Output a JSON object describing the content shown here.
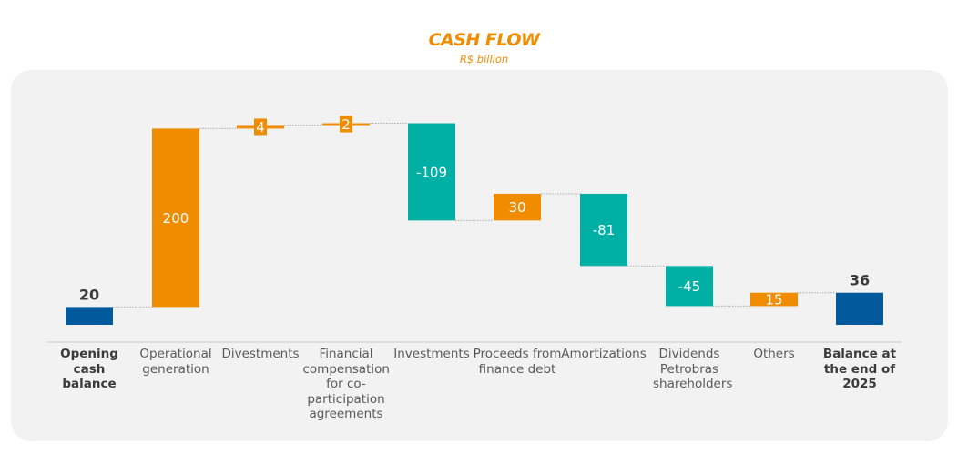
{
  "chart_data": {
    "type": "waterfall",
    "title": "CASH FLOW",
    "subtitle": "R$ billion",
    "ylim": [
      0,
      220
    ],
    "categories": [
      {
        "label": "Opening cash balance",
        "value": 20,
        "kind": "total",
        "display": "20"
      },
      {
        "label": "Operational generation",
        "value": 200,
        "kind": "increase",
        "display": "200"
      },
      {
        "label": "Divestments",
        "value": 4,
        "kind": "increase",
        "display": "4"
      },
      {
        "label": "Financial compensation for co-participation agreements",
        "value": 2,
        "kind": "increase",
        "display": "2"
      },
      {
        "label": "Investments",
        "value": -109,
        "kind": "decrease",
        "display": "-109"
      },
      {
        "label": "Proceeds from finance debt",
        "value": 30,
        "kind": "increase",
        "display": "30"
      },
      {
        "label": "Amortizations",
        "value": -81,
        "kind": "decrease",
        "display": "-81"
      },
      {
        "label": "Dividends Petrobras shareholders",
        "value": -45,
        "kind": "decrease",
        "display": "-45"
      },
      {
        "label": "Others",
        "value": 15,
        "kind": "increase",
        "display": "15"
      },
      {
        "label": "Balance at the end of 2025",
        "value": 36,
        "kind": "total",
        "display": "36"
      }
    ],
    "colors": {
      "total": "#005a9c",
      "increase": "#f08c00",
      "decrease": "#00b0a4",
      "title": "#f08c00"
    }
  }
}
